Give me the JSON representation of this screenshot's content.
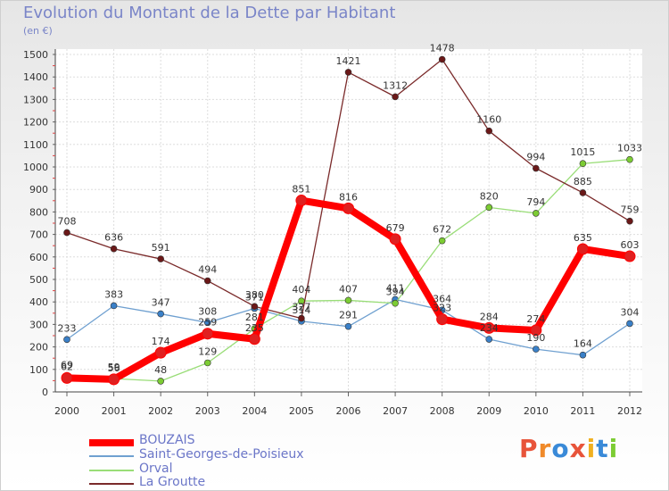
{
  "title": "Evolution du Montant de la Dette par Habitant",
  "subtitle": "(en €)",
  "logo": "Proxiti",
  "chart_data": {
    "type": "line",
    "title": "Evolution du Montant de la Dette par Habitant",
    "ylabel": "(en €)",
    "xlabel": "",
    "ylim": [
      0,
      1500
    ],
    "yticks": [
      0,
      100,
      200,
      300,
      400,
      500,
      600,
      700,
      800,
      900,
      1000,
      1100,
      1200,
      1300,
      1400,
      1500
    ],
    "x": [
      "2000",
      "2001",
      "2002",
      "2003",
      "2004",
      "2005",
      "2006",
      "2007",
      "2008",
      "2009",
      "2010",
      "2011",
      "2012"
    ],
    "grid": true,
    "legend_position": "bottom-left",
    "series": [
      {
        "name": "BOUZAIS",
        "color": "#ff0000",
        "marker": "#e02020",
        "values": [
          62,
          56,
          174,
          259,
          235,
          851,
          816,
          679,
          323,
          284,
          274,
          635,
          603
        ],
        "labels": [
          "62",
          "56",
          "174",
          "259",
          "235",
          "851",
          "816",
          "679",
          "323",
          "284",
          "274",
          "635",
          "603"
        ]
      },
      {
        "name": "Saint-Georges-de-Poisieux",
        "color": "#6fa0d0",
        "marker": "#3a80c8",
        "values": [
          233,
          383,
          347,
          308,
          371,
          314,
          291,
          411,
          364,
          234,
          190,
          164,
          304
        ],
        "labels": [
          "233",
          "383",
          "347",
          "308",
          "371",
          "314",
          "291",
          "411",
          "364",
          "234",
          "190",
          "164",
          "304"
        ]
      },
      {
        "name": "Orval",
        "color": "#99dd77",
        "marker": "#7ccc33",
        "values": [
          69,
          59,
          48,
          129,
          281,
          404,
          407,
          394,
          672,
          820,
          794,
          1015,
          1033
        ],
        "labels": [
          "69",
          "59",
          "48",
          "129",
          "281",
          "404",
          "407",
          "394",
          "672",
          "820",
          "794",
          "1015",
          "1033"
        ]
      },
      {
        "name": "La Groutte",
        "color": "#7a2a2a",
        "marker": "#6a1818",
        "values": [
          708,
          636,
          591,
          494,
          380,
          327,
          1421,
          1312,
          1478,
          1160,
          994,
          885,
          759
        ],
        "labels": [
          "708",
          "636",
          "591",
          "494",
          "380",
          "327",
          "1421",
          "1312",
          "1478",
          "1160",
          "994",
          "885",
          "759"
        ]
      }
    ]
  }
}
